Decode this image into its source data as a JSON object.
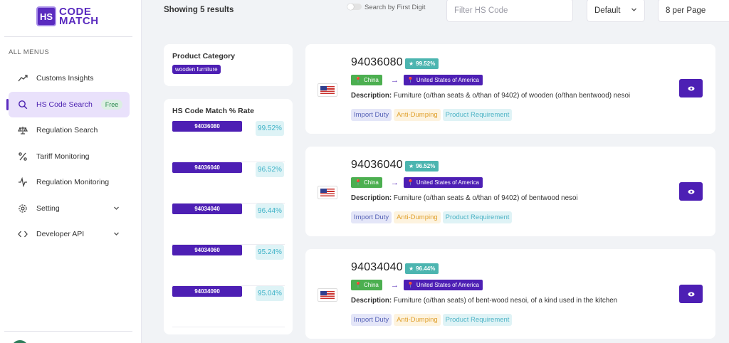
{
  "logo": {
    "mark": "HS",
    "line1": "CODE",
    "line2": "MATCH"
  },
  "sidebar": {
    "heading": "ALL MENUS",
    "items": [
      {
        "label": "Customs Insights",
        "icon": "trend-icon"
      },
      {
        "label": "HS Code Search",
        "icon": "search-icon",
        "badge": "Free",
        "active": true
      },
      {
        "label": "Regulation Search",
        "icon": "scale-icon"
      },
      {
        "label": "Tariff Monitoring",
        "icon": "percent-icon"
      },
      {
        "label": "Regulation Monitoring",
        "icon": "pulse-icon"
      },
      {
        "label": "Setting",
        "icon": "gear-icon",
        "expandable": true
      },
      {
        "label": "Developer API",
        "icon": "code-icon",
        "expandable": true
      }
    ]
  },
  "toolbar": {
    "results_text": "Showing 5 results",
    "toggle_label": "Search by First Digit",
    "filter_placeholder": "Filter HS Code",
    "sort_value": "Default",
    "per_page_value": "8 per Page"
  },
  "category_panel": {
    "title": "Product Category",
    "tag": "wooden furniture"
  },
  "rate_panel": {
    "title": "HS Code Match % Rate",
    "rows": [
      {
        "code": "94036080",
        "rate": "99.52%"
      },
      {
        "code": "94036040",
        "rate": "96.52%"
      },
      {
        "code": "94034040",
        "rate": "96.44%"
      },
      {
        "code": "94034060",
        "rate": "95.24%"
      },
      {
        "code": "94034090",
        "rate": "95.04%"
      }
    ]
  },
  "results": [
    {
      "code": "94036080",
      "match": "99.52%",
      "from": "China",
      "to": "United States of America",
      "desc_label": "Description:",
      "description": "Furniture (o/than seats & o/than of 9402) of wooden (o/than bentwood) nesoi",
      "chips": [
        "Import Duty",
        "Anti-Dumping",
        "Product Requirement"
      ]
    },
    {
      "code": "94036040",
      "match": "96.52%",
      "from": "China",
      "to": "United States of America",
      "desc_label": "Description:",
      "description": "Furniture (o/than seats & o/than of 9402) of bentwood nesoi",
      "chips": [
        "Import Duty",
        "Anti-Dumping",
        "Product Requirement"
      ]
    },
    {
      "code": "94034040",
      "match": "96.44%",
      "from": "China",
      "to": "United States of America",
      "desc_label": "Description:",
      "description": "Furniture (o/than seats) of bent-wood nesoi, of a kind used in the kitchen",
      "chips": [
        "Import Duty",
        "Anti-Dumping",
        "Product Requirement"
      ]
    }
  ],
  "colors": {
    "primary": "#4d1fb4",
    "active_bg": "#e9e1fb",
    "green": "#4caf50",
    "teal": "#4cb5b0"
  }
}
